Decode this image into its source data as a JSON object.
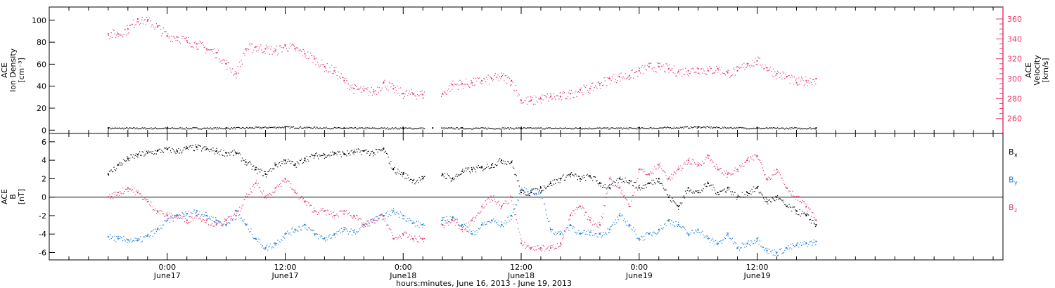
{
  "chart_data": [
    {
      "type": "scatter",
      "panel": "top",
      "ylabel_left": [
        "ACE",
        "Ion Density",
        "[cm⁻³]"
      ],
      "ylabel_right": [
        "ACE",
        "Velocity",
        "[km/s]"
      ],
      "y_left_ticks": [
        "0",
        "20",
        "40",
        "60",
        "80",
        "100"
      ],
      "y_left_lim": [
        -3,
        112
      ],
      "y_right_ticks": [
        "260",
        "280",
        "300",
        "320",
        "340",
        "360"
      ],
      "y_right_lim": [
        245,
        372
      ],
      "colors": {
        "density": "#000000",
        "velocity": "#e8396a"
      },
      "series": [
        {
          "axis": "left",
          "color": "#000000",
          "x": [
            -6,
            0,
            6,
            12,
            18,
            24,
            27,
            30,
            36,
            42,
            48,
            54,
            60,
            66
          ],
          "y": [
            2,
            2,
            2,
            3,
            2,
            2,
            2,
            2,
            2,
            2,
            2,
            3,
            2,
            2
          ]
        },
        {
          "axis": "right",
          "color": "#e8396a",
          "x": [
            -6,
            -5,
            -4,
            -3,
            -2,
            -1,
            0,
            1,
            2,
            3,
            4,
            5,
            6,
            7,
            8,
            9,
            10,
            11,
            12,
            13,
            14,
            15,
            16,
            17,
            18,
            19,
            20,
            21,
            22,
            23,
            24,
            25,
            26,
            28,
            29,
            30,
            31,
            32,
            33,
            34,
            35,
            36,
            37,
            38,
            39,
            40,
            41,
            42,
            43,
            44,
            45,
            46,
            47,
            48,
            49,
            50,
            51,
            52,
            53,
            54,
            55,
            56,
            57,
            58,
            59,
            60,
            61,
            62,
            63,
            64,
            65,
            66
          ],
          "y": [
            345,
            345,
            350,
            360,
            358,
            352,
            343,
            342,
            338,
            335,
            330,
            326,
            315,
            305,
            330,
            332,
            330,
            328,
            333,
            330,
            325,
            320,
            312,
            308,
            298,
            290,
            288,
            287,
            296,
            290,
            285,
            285,
            284,
            285,
            294,
            295,
            296,
            298,
            300,
            302,
            298,
            278,
            278,
            280,
            282,
            282,
            285,
            289,
            290,
            295,
            300,
            302,
            303,
            308,
            312,
            312,
            310,
            307,
            308,
            310,
            308,
            310,
            306,
            308,
            315,
            318,
            311,
            305,
            302,
            296,
            298,
            300
          ]
        }
      ]
    },
    {
      "type": "scatter",
      "panel": "bottom",
      "ylabel": [
        "ACE",
        "B",
        "[nT]"
      ],
      "y_ticks": [
        "-6",
        "-4",
        "-2",
        "0",
        "2",
        "4",
        "6"
      ],
      "ylim": [
        -6.8,
        6.9
      ],
      "legend": [
        {
          "label": "B",
          "sub": "x",
          "color": "#000000"
        },
        {
          "label": "B",
          "sub": "y",
          "color": "#1a7fdc"
        },
        {
          "label": "B",
          "sub": "z",
          "color": "#e8396a"
        }
      ],
      "series": [
        {
          "sub": "x",
          "color": "#000000",
          "x": [
            -6,
            -5,
            -4,
            -3,
            -2,
            -1,
            0,
            1,
            2,
            3,
            4,
            5,
            6,
            7,
            8,
            9,
            10,
            11,
            12,
            13,
            14,
            15,
            16,
            17,
            18,
            19,
            20,
            21,
            22,
            23,
            24,
            25,
            26,
            28,
            29,
            30,
            31,
            32,
            33,
            34,
            35,
            36,
            37,
            38,
            39,
            40,
            41,
            42,
            43,
            44,
            45,
            46,
            47,
            48,
            49,
            50,
            51,
            52,
            53,
            54,
            55,
            56,
            57,
            58,
            59,
            60,
            61,
            62,
            63,
            64,
            65,
            66
          ],
          "y": [
            2.5,
            3.5,
            4.2,
            4.6,
            4.8,
            5.0,
            5.2,
            5.0,
            5.3,
            5.4,
            5.2,
            5.0,
            4.8,
            4.8,
            3.8,
            3.0,
            2.5,
            3.5,
            4.0,
            3.5,
            4.2,
            4.5,
            4.6,
            4.8,
            4.7,
            4.9,
            5.0,
            4.8,
            5.2,
            3.0,
            2.5,
            1.8,
            2.0,
            2.5,
            2.0,
            2.8,
            3.0,
            3.2,
            3.5,
            4.0,
            3.8,
            0.5,
            0.5,
            1.0,
            1.5,
            2.0,
            2.5,
            2.0,
            2.3,
            1.5,
            1.0,
            2.0,
            1.8,
            1.0,
            1.5,
            2.0,
            0.0,
            -1.0,
            1.0,
            0.5,
            1.5,
            0.5,
            1.0,
            0.0,
            0.5,
            1.0,
            -0.5,
            0.0,
            -1.0,
            -1.5,
            -2.0,
            -3.0
          ]
        },
        {
          "sub": "y",
          "color": "#1a7fdc",
          "x": [
            -6,
            -5,
            -4,
            -3,
            -2,
            -1,
            0,
            1,
            2,
            3,
            4,
            5,
            6,
            7,
            8,
            9,
            10,
            11,
            12,
            13,
            14,
            15,
            16,
            17,
            18,
            19,
            20,
            21,
            22,
            23,
            24,
            25,
            26,
            28,
            29,
            30,
            31,
            32,
            33,
            34,
            35,
            36,
            37,
            38,
            39,
            40,
            41,
            42,
            43,
            44,
            45,
            46,
            47,
            48,
            49,
            50,
            51,
            52,
            53,
            54,
            55,
            56,
            57,
            58,
            59,
            60,
            61,
            62,
            63,
            64,
            65,
            66
          ],
          "y": [
            -4.3,
            -4.5,
            -4.6,
            -4.7,
            -4.2,
            -3.5,
            -2.5,
            -2.0,
            -1.8,
            -1.5,
            -2.0,
            -2.5,
            -3.0,
            -1.5,
            -3.0,
            -4.5,
            -5.5,
            -5.0,
            -4.0,
            -3.5,
            -3.0,
            -4.0,
            -4.5,
            -4.0,
            -3.5,
            -3.8,
            -3.0,
            -2.5,
            -2.0,
            -1.5,
            -2.0,
            -2.8,
            -3.0,
            -2.5,
            -2.2,
            -3.0,
            -4.0,
            -3.0,
            -2.5,
            -3.0,
            -2.0,
            0.8,
            0.7,
            0.5,
            -3.5,
            -4.0,
            -3.0,
            -4.0,
            -3.8,
            -4.0,
            -3.5,
            -2.0,
            -3.0,
            -4.5,
            -4.0,
            -3.5,
            -2.5,
            -3.0,
            -4.0,
            -3.5,
            -4.5,
            -5.0,
            -4.0,
            -5.5,
            -5.0,
            -4.5,
            -5.8,
            -6.0,
            -5.5,
            -5.2,
            -5.0,
            -4.8
          ]
        },
        {
          "sub": "z",
          "color": "#e8396a",
          "x": [
            -6,
            -5,
            -4,
            -3,
            -2,
            -1,
            0,
            1,
            2,
            3,
            4,
            5,
            6,
            7,
            8,
            9,
            10,
            11,
            12,
            13,
            14,
            15,
            16,
            17,
            18,
            19,
            20,
            21,
            22,
            23,
            24,
            25,
            26,
            28,
            29,
            30,
            31,
            32,
            33,
            34,
            35,
            36,
            37,
            38,
            39,
            40,
            41,
            42,
            43,
            44,
            45,
            46,
            47,
            48,
            49,
            50,
            51,
            52,
            53,
            54,
            55,
            56,
            57,
            58,
            59,
            60,
            61,
            62,
            63,
            64,
            65,
            66
          ],
          "y": [
            0.0,
            0.5,
            1.0,
            0.5,
            -0.5,
            -1.5,
            -2.0,
            -2.0,
            -2.5,
            -2.0,
            -2.5,
            -3.0,
            -2.5,
            -2.0,
            0.0,
            1.5,
            0.0,
            1.0,
            2.0,
            0.5,
            -0.5,
            -1.5,
            -1.5,
            -2.0,
            -1.5,
            -2.0,
            -3.0,
            -2.5,
            -2.0,
            -4.5,
            -4.0,
            -4.5,
            -4.5,
            -3.0,
            -2.5,
            -3.5,
            -2.5,
            -1.0,
            0.0,
            -1.0,
            0.0,
            -5.0,
            -5.5,
            -5.5,
            -5.5,
            -5.0,
            -2.0,
            -1.0,
            -2.5,
            -3.0,
            2.0,
            1.0,
            -1.0,
            3.0,
            2.5,
            3.5,
            2.0,
            3.0,
            4.0,
            3.5,
            4.5,
            3.0,
            2.5,
            3.0,
            4.0,
            4.5,
            2.0,
            3.0,
            1.0,
            0.0,
            -1.0,
            -2.5
          ]
        }
      ]
    }
  ],
  "x_axis": {
    "xlim": [
      -12,
      85
    ],
    "ticks": [
      {
        "x": 0,
        "time": "0:00",
        "date": "June17"
      },
      {
        "x": 12,
        "time": "12:00",
        "date": "June17"
      },
      {
        "x": 24,
        "time": "0:00",
        "date": "June18"
      },
      {
        "x": 36,
        "time": "12:00",
        "date": "June18"
      },
      {
        "x": 48,
        "time": "0:00",
        "date": "June19"
      },
      {
        "x": 60,
        "time": "12:00",
        "date": "June19"
      }
    ],
    "xlabel": "hours:minutes, June 16, 2013 - June 19, 2013"
  }
}
